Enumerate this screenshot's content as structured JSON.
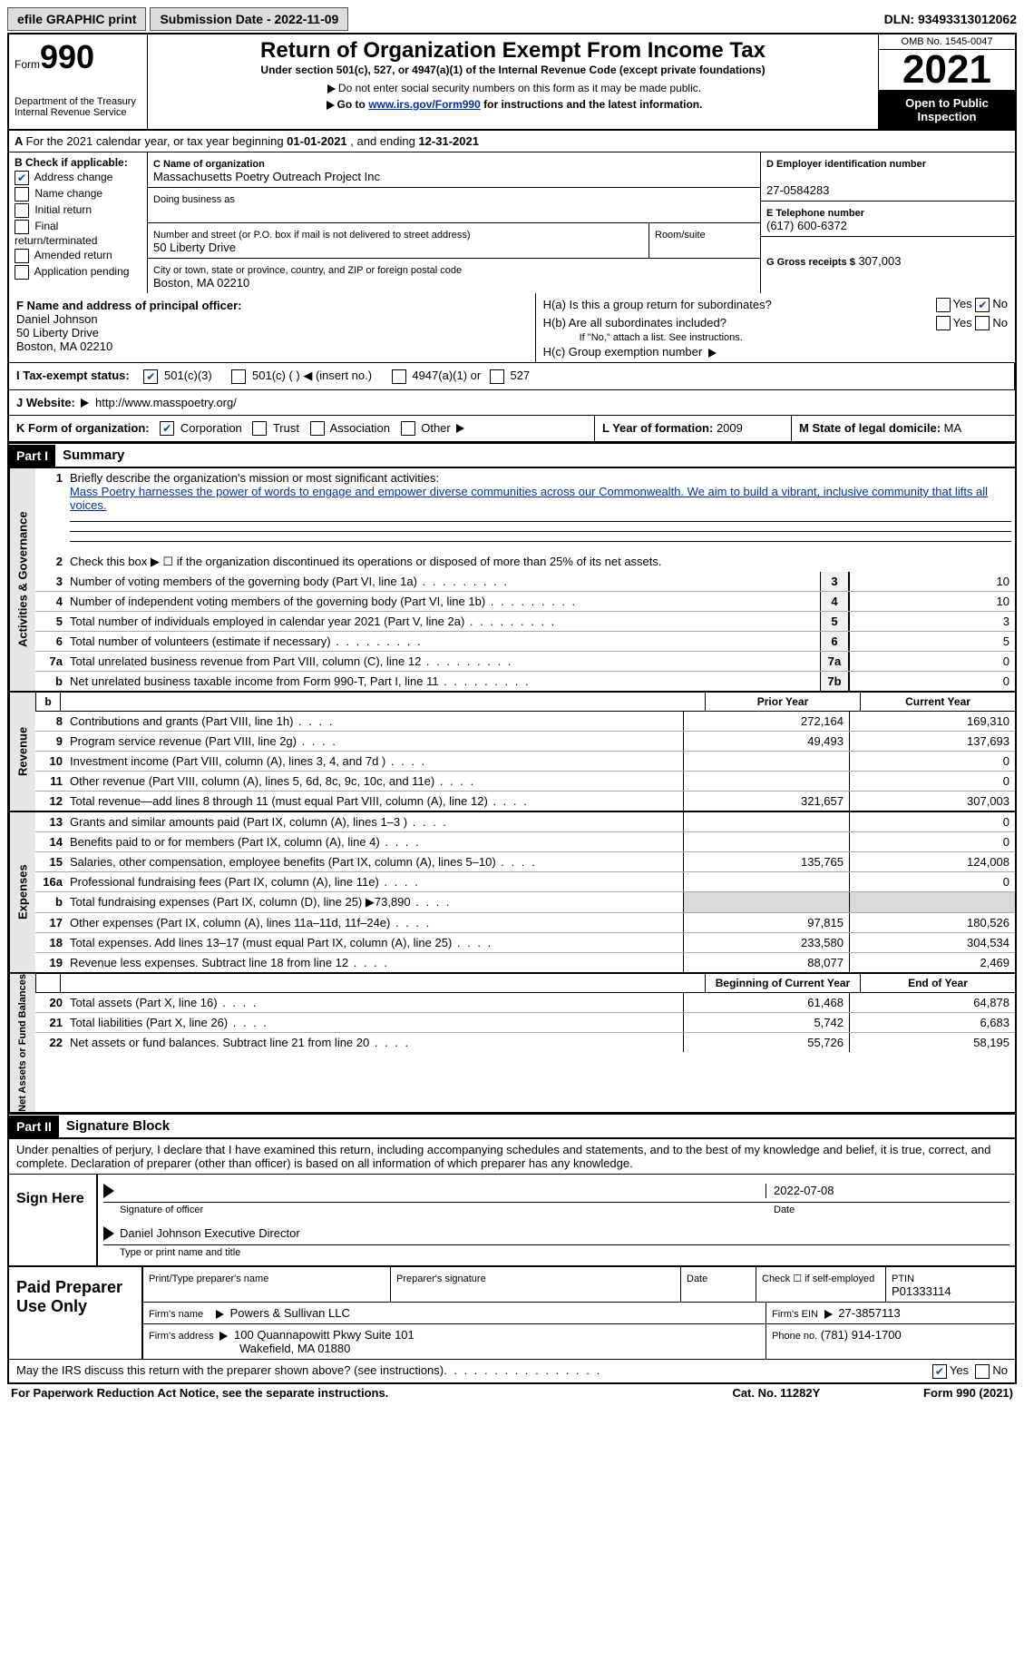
{
  "top": {
    "efile": "efile GRAPHIC print",
    "submission_label": "Submission Date - 2022-11-09",
    "dln_label": "DLN: 93493313012062"
  },
  "header": {
    "form_label": "Form",
    "form_number": "990",
    "dept": "Department of the Treasury\nInternal Revenue Service",
    "title": "Return of Organization Exempt From Income Tax",
    "subtitle": "Under section 501(c), 527, or 4947(a)(1) of the Internal Revenue Code (except private foundations)",
    "note1": "Do not enter social security numbers on this form as it may be made public.",
    "note2_pre": "Go to ",
    "note2_link": "www.irs.gov/Form990",
    "note2_post": " for instructions and the latest information.",
    "omb": "OMB No. 1545-0047",
    "year": "2021",
    "open": "Open to Public Inspection"
  },
  "A": {
    "text_pre": "For the 2021 calendar year, or tax year beginning ",
    "begin": "01-01-2021",
    "mid": " , and ending ",
    "end": "12-31-2021"
  },
  "B": {
    "label": "B Check if applicable:",
    "items": [
      "Address change",
      "Name change",
      "Initial return",
      "Final return/terminated",
      "Amended return",
      "Application pending"
    ],
    "checked_index": 0
  },
  "C": {
    "label": "C Name of organization",
    "name": "Massachusetts Poetry Outreach Project Inc",
    "dba_label": "Doing business as",
    "street_label": "Number and street (or P.O. box if mail is not delivered to street address)",
    "room_label": "Room/suite",
    "street": "50 Liberty Drive",
    "city_label": "City or town, state or province, country, and ZIP or foreign postal code",
    "city": "Boston, MA  02210"
  },
  "D": {
    "label": "D Employer identification number",
    "value": "27-0584283"
  },
  "E": {
    "label": "E Telephone number",
    "value": "(617) 600-6372"
  },
  "G": {
    "label": "G Gross receipts $",
    "value": "307,003"
  },
  "F": {
    "label": "F Name and address of principal officer:",
    "name": "Daniel Johnson",
    "addr1": "50 Liberty Drive",
    "addr2": "Boston, MA  02210"
  },
  "H": {
    "a": "H(a)  Is this a group return for subordinates?",
    "b": "H(b)  Are all subordinates included?",
    "b_note": "If \"No,\" attach a list. See instructions.",
    "c": "H(c)  Group exemption number",
    "yes": "Yes",
    "no": "No"
  },
  "I": {
    "label": "I   Tax-exempt status:",
    "opts": [
      "501(c)(3)",
      "501(c) (  )  ◀ (insert no.)",
      "4947(a)(1) or",
      "527"
    ]
  },
  "J": {
    "label": "J   Website:",
    "value": "http://www.masspoetry.org/"
  },
  "K": {
    "label": "K Form of organization:",
    "opts": [
      "Corporation",
      "Trust",
      "Association",
      "Other"
    ]
  },
  "L": {
    "label": "L Year of formation:",
    "value": "2009"
  },
  "M": {
    "label": "M State of legal domicile:",
    "value": "MA"
  },
  "part1": {
    "header": "Part I",
    "title": "Summary",
    "l1_label": "Briefly describe the organization's mission or most significant activities:",
    "l1_text": "Mass Poetry harnesses the power of words to engage and empower diverse communities across our Commonwealth. We aim to build a vibrant, inclusive community that lifts all voices.",
    "l2": "Check this box ▶ ☐ if the organization discontinued its operations or disposed of more than 25% of its net assets.",
    "activities_label": "Activities & Governance",
    "revenue_label": "Revenue",
    "expenses_label": "Expenses",
    "netassets_label": "Net Assets or Fund Balances",
    "lines_single": [
      {
        "n": "3",
        "label": "Number of voting members of the governing body (Part VI, line 1a)",
        "box": "3",
        "v": "10"
      },
      {
        "n": "4",
        "label": "Number of independent voting members of the governing body (Part VI, line 1b)",
        "box": "4",
        "v": "10"
      },
      {
        "n": "5",
        "label": "Total number of individuals employed in calendar year 2021 (Part V, line 2a)",
        "box": "5",
        "v": "3"
      },
      {
        "n": "6",
        "label": "Total number of volunteers (estimate if necessary)",
        "box": "6",
        "v": "5"
      },
      {
        "n": "7a",
        "label": "Total unrelated business revenue from Part VIII, column (C), line 12",
        "box": "7a",
        "v": "0"
      },
      {
        "n": "b",
        "label": "Net unrelated business taxable income from Form 990-T, Part I, line 11",
        "box": "7b",
        "v": "0"
      }
    ],
    "col_prior": "Prior Year",
    "col_current": "Current Year",
    "revenue_lines": [
      {
        "n": "8",
        "label": "Contributions and grants (Part VIII, line 1h)",
        "p": "272,164",
        "c": "169,310"
      },
      {
        "n": "9",
        "label": "Program service revenue (Part VIII, line 2g)",
        "p": "49,493",
        "c": "137,693"
      },
      {
        "n": "10",
        "label": "Investment income (Part VIII, column (A), lines 3, 4, and 7d )",
        "p": "",
        "c": "0"
      },
      {
        "n": "11",
        "label": "Other revenue (Part VIII, column (A), lines 5, 6d, 8c, 9c, 10c, and 11e)",
        "p": "",
        "c": "0"
      },
      {
        "n": "12",
        "label": "Total revenue—add lines 8 through 11 (must equal Part VIII, column (A), line 12)",
        "p": "321,657",
        "c": "307,003"
      }
    ],
    "expense_lines": [
      {
        "n": "13",
        "label": "Grants and similar amounts paid (Part IX, column (A), lines 1–3 )",
        "p": "",
        "c": "0"
      },
      {
        "n": "14",
        "label": "Benefits paid to or for members (Part IX, column (A), line 4)",
        "p": "",
        "c": "0"
      },
      {
        "n": "15",
        "label": "Salaries, other compensation, employee benefits (Part IX, column (A), lines 5–10)",
        "p": "135,765",
        "c": "124,008"
      },
      {
        "n": "16a",
        "label": "Professional fundraising fees (Part IX, column (A), line 11e)",
        "p": "",
        "c": "0"
      },
      {
        "n": "b",
        "label": "Total fundraising expenses (Part IX, column (D), line 25) ▶73,890",
        "p": "shade",
        "c": "shade"
      },
      {
        "n": "17",
        "label": "Other expenses (Part IX, column (A), lines 11a–11d, 11f–24e)",
        "p": "97,815",
        "c": "180,526"
      },
      {
        "n": "18",
        "label": "Total expenses. Add lines 13–17 (must equal Part IX, column (A), line 25)",
        "p": "233,580",
        "c": "304,534"
      },
      {
        "n": "19",
        "label": "Revenue less expenses. Subtract line 18 from line 12",
        "p": "88,077",
        "c": "2,469"
      }
    ],
    "col_begin": "Beginning of Current Year",
    "col_end": "End of Year",
    "net_lines": [
      {
        "n": "20",
        "label": "Total assets (Part X, line 16)",
        "p": "61,468",
        "c": "64,878"
      },
      {
        "n": "21",
        "label": "Total liabilities (Part X, line 26)",
        "p": "5,742",
        "c": "6,683"
      },
      {
        "n": "22",
        "label": "Net assets or fund balances. Subtract line 21 from line 20",
        "p": "55,726",
        "c": "58,195"
      }
    ]
  },
  "part2": {
    "header": "Part II",
    "title": "Signature Block",
    "declaration": "Under penalties of perjury, I declare that I have examined this return, including accompanying schedules and statements, and to the best of my knowledge and belief, it is true, correct, and complete. Declaration of preparer (other than officer) is based on all information of which preparer has any knowledge."
  },
  "sign": {
    "label": "Sign Here",
    "sig_officer": "Signature of officer",
    "date_label": "Date",
    "date": "2022-07-08",
    "name": "Daniel Johnson  Executive Director",
    "name_label": "Type or print name and title"
  },
  "paid": {
    "label": "Paid Preparer Use Only",
    "r1": {
      "a": "Print/Type preparer's name",
      "b": "Preparer's signature",
      "c": "Date",
      "d_pre": "Check ☐ if self-employed",
      "e_label": "PTIN",
      "e": "P01333114"
    },
    "r2": {
      "a": "Firm's name",
      "b": "Powers & Sullivan LLC",
      "c": "Firm's EIN",
      "d": "27-3857113"
    },
    "r3": {
      "a": "Firm's address",
      "b": "100 Quannapowitt Pkwy Suite 101",
      "c": "Wakefield, MA  01880",
      "d": "Phone no.",
      "e": "(781) 914-1700"
    }
  },
  "bottom": {
    "q": "May the IRS discuss this return with the preparer shown above? (see instructions)",
    "yes": "Yes",
    "no": "No"
  },
  "footer": {
    "left": "For Paperwork Reduction Act Notice, see the separate instructions.",
    "mid": "Cat. No. 11282Y",
    "right": "Form 990 (2021)"
  }
}
